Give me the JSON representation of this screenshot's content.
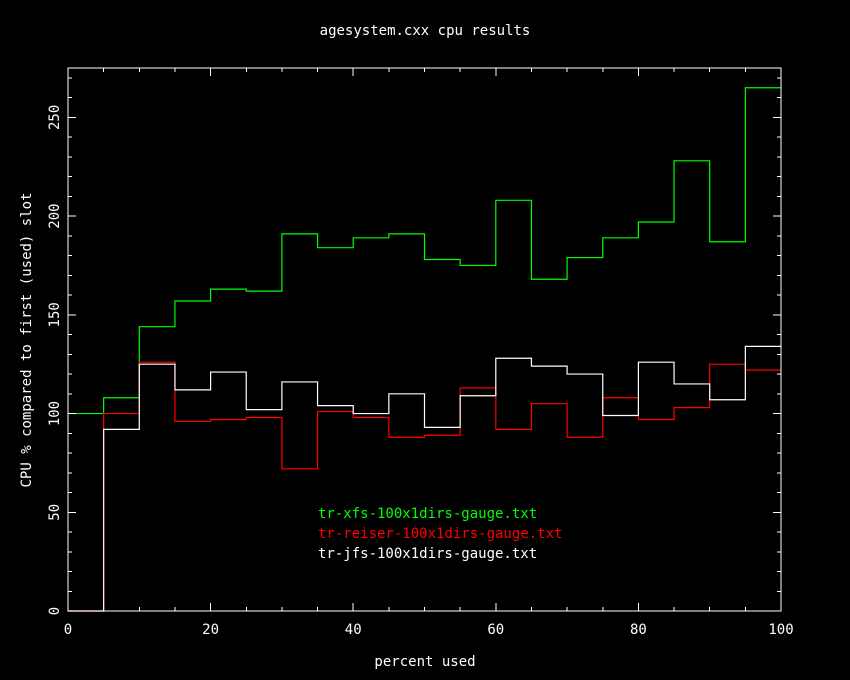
{
  "chart_data": {
    "type": "line",
    "step": true,
    "title": "agesystem.cxx cpu results",
    "xlabel": "percent used",
    "ylabel": "CPU % compared to first (used) slot",
    "xlim": [
      0,
      100
    ],
    "ylim": [
      0,
      275
    ],
    "xticks": [
      0,
      20,
      40,
      60,
      80,
      100
    ],
    "yticks": [
      0,
      50,
      100,
      150,
      200,
      250
    ],
    "xtick_labels": [
      "0",
      "20",
      "40",
      "60",
      "80",
      "100"
    ],
    "ytick_labels": [
      "0",
      "50",
      "100",
      "150",
      "200",
      "250"
    ],
    "bin_edges": [
      0,
      5,
      10,
      15,
      20,
      25,
      30,
      35,
      40,
      45,
      50,
      55,
      60,
      65,
      70,
      75,
      80,
      85,
      90,
      95,
      100
    ],
    "legend_position": "center-left",
    "series": [
      {
        "name": "tr-xfs-100x1dirs-gauge.txt",
        "color": "#00ff00",
        "values": [
          100,
          108,
          144,
          157,
          163,
          162,
          191,
          184,
          189,
          191,
          178,
          175,
          208,
          168,
          179,
          189,
          197,
          228,
          187,
          265
        ]
      },
      {
        "name": "tr-reiser-100x1dirs-gauge.txt",
        "color": "#ff0000",
        "values": [
          0,
          100,
          126,
          96,
          97,
          98,
          72,
          101,
          98,
          88,
          89,
          113,
          92,
          105,
          88,
          108,
          97,
          103,
          125,
          122
        ]
      },
      {
        "name": "tr-jfs-100x1dirs-gauge.txt",
        "color": "#ffffff",
        "values": [
          0,
          92,
          125,
          112,
          121,
          102,
          116,
          104,
          100,
          110,
          93,
          109,
          128,
          124,
          120,
          99,
          126,
          115,
          107,
          134
        ]
      }
    ]
  }
}
